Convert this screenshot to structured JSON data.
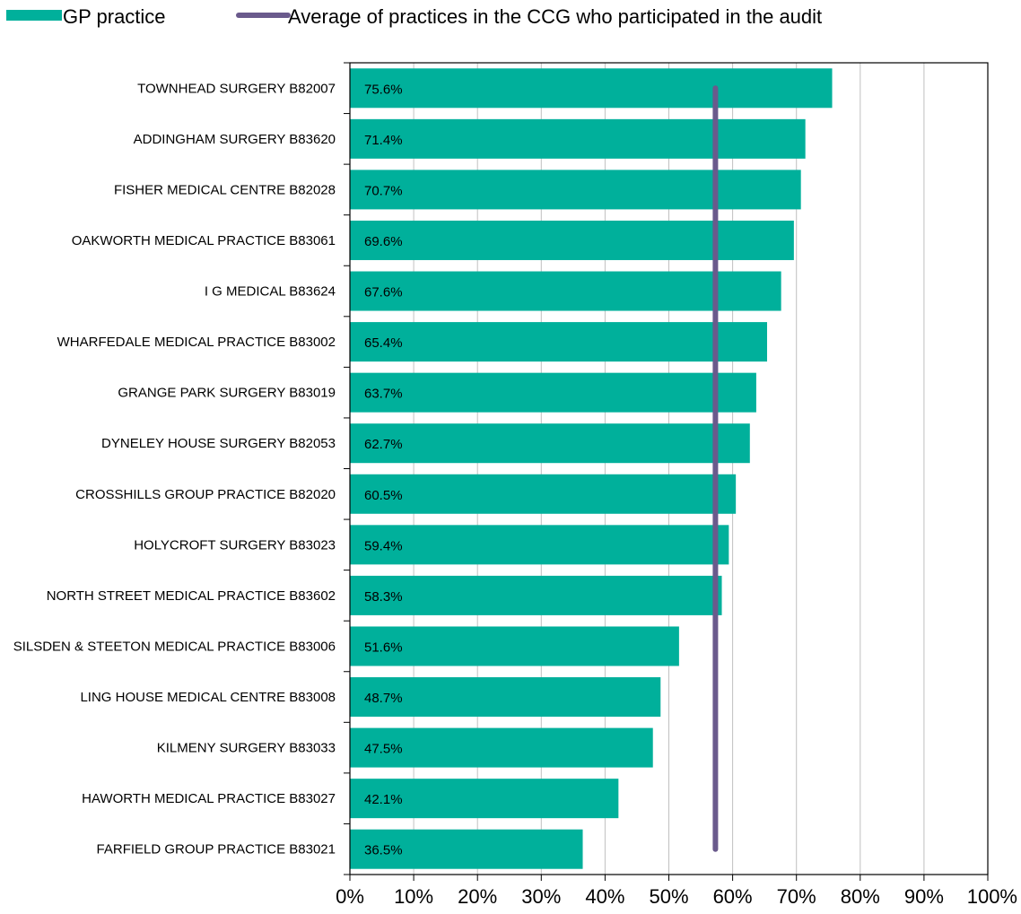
{
  "legend": {
    "bar_label": "GP practice",
    "line_label": "Average of practices in the CCG who participated in the audit"
  },
  "colors": {
    "bar": "#00B09B",
    "average_line": "#6A5A8C",
    "grid": "#C0C0C0",
    "axis": "#000000"
  },
  "chart_data": {
    "type": "bar",
    "orientation": "horizontal",
    "categories": [
      "TOWNHEAD SURGERY B82007",
      "ADDINGHAM SURGERY B83620",
      "FISHER MEDICAL CENTRE B82028",
      "OAKWORTH MEDICAL PRACTICE B83061",
      "I G MEDICAL B83624",
      "WHARFEDALE MEDICAL PRACTICE B83002",
      "GRANGE PARK SURGERY B83019",
      "DYNELEY HOUSE SURGERY B82053",
      "CROSSHILLS GROUP PRACTICE B82020",
      "HOLYCROFT SURGERY B83023",
      "NORTH STREET MEDICAL PRACTICE B83602",
      "SILSDEN & STEETON MEDICAL PRACTICE B83006",
      "LING HOUSE MEDICAL CENTRE B83008",
      "KILMENY SURGERY B83033",
      "HAWORTH MEDICAL PRACTICE B83027",
      "FARFIELD GROUP PRACTICE B83021"
    ],
    "series": [
      {
        "name": "GP practice",
        "values": [
          75.6,
          71.4,
          70.7,
          69.6,
          67.6,
          65.4,
          63.7,
          62.7,
          60.5,
          59.4,
          58.3,
          51.6,
          48.7,
          47.5,
          42.1,
          36.5
        ]
      }
    ],
    "data_labels": [
      "75.6%",
      "71.4%",
      "70.7%",
      "69.6%",
      "67.6%",
      "65.4%",
      "63.7%",
      "62.7%",
      "60.5%",
      "59.4%",
      "58.3%",
      "51.6%",
      "48.7%",
      "47.5%",
      "42.1%",
      "36.5%"
    ],
    "average": {
      "name": "Average of practices in the CCG who participated in the audit",
      "value": 57.3
    },
    "xlim": [
      0,
      100
    ],
    "xticks": [
      "0%",
      "10%",
      "20%",
      "30%",
      "40%",
      "50%",
      "60%",
      "70%",
      "80%",
      "90%",
      "100%"
    ],
    "grid": "vertical",
    "legend_position": "top"
  }
}
